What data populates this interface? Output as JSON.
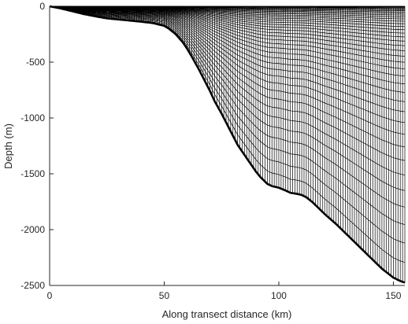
{
  "chart_data": {
    "type": "line",
    "title": "",
    "xlabel": "Along transect distance (km)",
    "ylabel": "Depth (m)",
    "xlim": [
      0,
      155
    ],
    "ylim": [
      -2500,
      0
    ],
    "x_ticks": [
      0,
      50,
      100,
      150
    ],
    "y_ticks": [
      0,
      -500,
      -1000,
      -1500,
      -2000,
      -2500
    ],
    "x_tick_labels": [
      "0",
      "50",
      "100",
      "150"
    ],
    "y_tick_labels": [
      "0",
      "-500",
      "-1000",
      "-1500",
      "-2000",
      "-2500"
    ],
    "grid": false,
    "legend": "none",
    "bathymetry": {
      "x": [
        0,
        5,
        10,
        15,
        20,
        25,
        30,
        35,
        40,
        45,
        50,
        52,
        55,
        58,
        60,
        62,
        65,
        68,
        70,
        72,
        75,
        78,
        80,
        82,
        85,
        88,
        90,
        92,
        95,
        97,
        100,
        103,
        105,
        108,
        110,
        112,
        115,
        118,
        120,
        125,
        130,
        135,
        140,
        145,
        150,
        153,
        155
      ],
      "depth": [
        0,
        -20,
        -45,
        -70,
        -90,
        -108,
        -118,
        -128,
        -138,
        -150,
        -175,
        -200,
        -250,
        -320,
        -380,
        -450,
        -560,
        -680,
        -760,
        -850,
        -960,
        -1080,
        -1160,
        -1240,
        -1330,
        -1420,
        -1480,
        -1530,
        -1590,
        -1610,
        -1625,
        -1650,
        -1670,
        -1680,
        -1690,
        -1710,
        -1760,
        -1820,
        -1860,
        -1950,
        -2050,
        -2150,
        -2250,
        -2350,
        -2430,
        -2460,
        -2475
      ]
    },
    "vertical_levels": 40,
    "column_spacing_km": 1,
    "stretching": {
      "theta_s": 4.0,
      "theta_b": 0.6,
      "hc": 50
    }
  }
}
